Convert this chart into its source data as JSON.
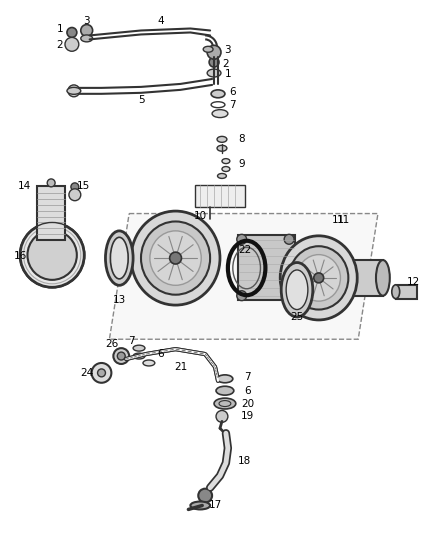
{
  "bg_color": "#ffffff",
  "line_color": "#333333",
  "label_color": "#000000",
  "fig_w": 4.38,
  "fig_h": 5.33,
  "dpi": 100
}
